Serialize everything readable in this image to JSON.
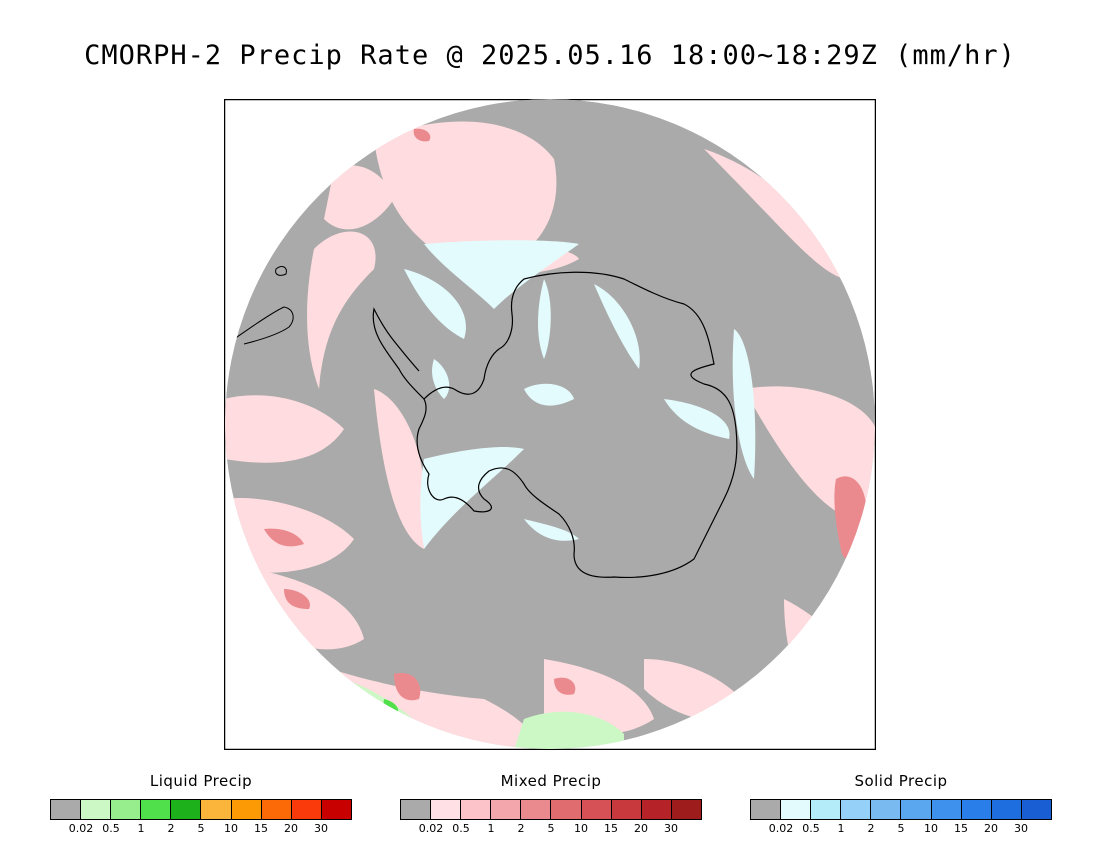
{
  "title": "CMORPH-2 Precip Rate @ 2025.05.16 18:00~18:29Z (mm/hr)",
  "map": {
    "projection": "south-polar-stereographic",
    "region": "Antarctica",
    "background_color": "#aaaaaa",
    "outline_color": "#000000"
  },
  "legends": [
    {
      "title": "Liquid Precip",
      "colors": [
        "#aaaaaa",
        "#ccf8c6",
        "#96ef8c",
        "#4fe04b",
        "#1db11c",
        "#fbb53a",
        "#fb9a04",
        "#fb6a06",
        "#fb3a0b",
        "#c80000"
      ],
      "ticks": [
        "0.02",
        "0.5",
        "1",
        "2",
        "5",
        "10",
        "15",
        "20",
        "30"
      ]
    },
    {
      "title": "Mixed Precip",
      "colors": [
        "#aaaaaa",
        "#ffe0e4",
        "#fcc3c8",
        "#f3a6ab",
        "#eb8a8e",
        "#e06c70",
        "#d65156",
        "#c8393d",
        "#b52227",
        "#9e1c1c"
      ],
      "ticks": [
        "0.02",
        "0.5",
        "1",
        "2",
        "5",
        "10",
        "15",
        "20",
        "30"
      ]
    },
    {
      "title": "Solid Precip",
      "colors": [
        "#aaaaaa",
        "#e3fbfc",
        "#b4ecf9",
        "#94d0f7",
        "#79baf1",
        "#5aa6ef",
        "#3e92ed",
        "#2a7ee9",
        "#1f6ee0",
        "#1a5ed4"
      ],
      "ticks": [
        "0.02",
        "0.5",
        "1",
        "2",
        "5",
        "10",
        "15",
        "20",
        "30"
      ]
    }
  ]
}
